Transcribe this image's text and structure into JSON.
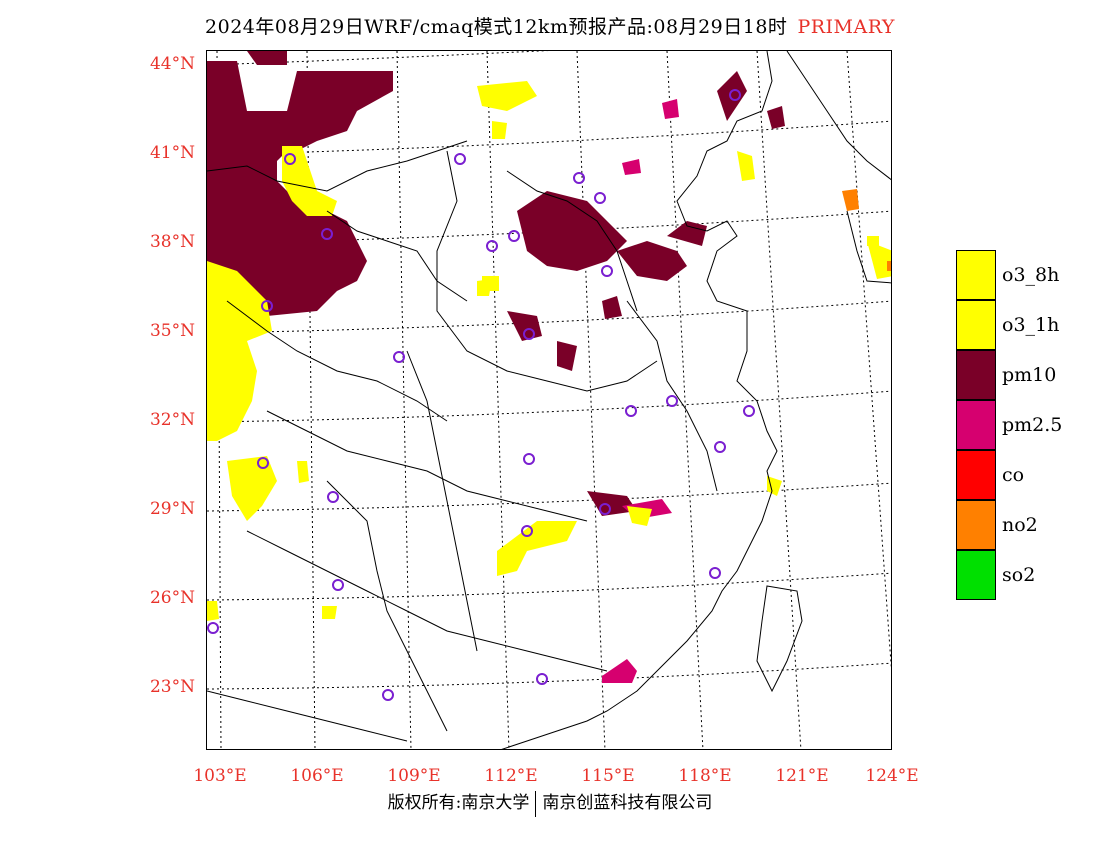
{
  "header": {
    "title": "2024年08月29日WRF/cmaq模式12km预报产品:08月29日18时",
    "tag": "PRIMARY"
  },
  "axes": {
    "lat_labels": [
      "44°N",
      "41°N",
      "38°N",
      "35°N",
      "32°N",
      "29°N",
      "26°N",
      "23°N"
    ],
    "lon_labels": [
      "103°E",
      "106°E",
      "109°E",
      "112°E",
      "115°E",
      "118°E",
      "121°E",
      "124°E"
    ]
  },
  "legend": {
    "items": [
      {
        "label": "o3_8h",
        "color": "#ffff00"
      },
      {
        "label": "o3_1h",
        "color": "#ffff00"
      },
      {
        "label": "pm10",
        "color": "#7a0028"
      },
      {
        "label": "pm2.5",
        "color": "#d6006f"
      },
      {
        "label": "co",
        "color": "#ff0000"
      },
      {
        "label": "no2",
        "color": "#ff8000"
      },
      {
        "label": "so2",
        "color": "#00e000"
      }
    ]
  },
  "footer": {
    "left": "版权所有:南京大学",
    "right": "南京创蓝科技有限公司"
  },
  "colors": {
    "label_red": "#e8322a",
    "station_circle": "#7a1fd0"
  }
}
